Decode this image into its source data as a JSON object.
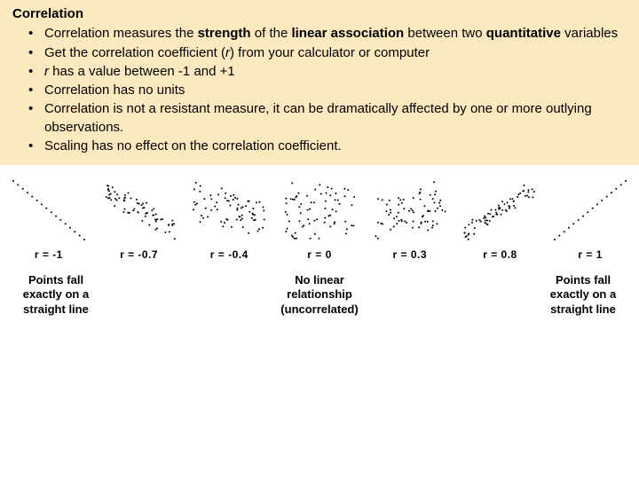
{
  "title": "Correlation",
  "bullets": [
    {
      "html": "Correlation measures the <span class='bold'>strength</span> of the <span class='bold'>linear association</span> between two <span class='bold'>quantitative</span> variables"
    },
    {
      "html": "Get the correlation coefficient (<em class='italic-r'>r</em>) from your calculator or computer"
    },
    {
      "html": "<em class='italic-r'>r</em> has a value between -1 and +1"
    },
    {
      "html": "Correlation has no units"
    },
    {
      "html": "Correlation is not a resistant measure, it can be dramatically affected by one or more outlying observations."
    },
    {
      "html": "Scaling has no effect on the correlation coefficient."
    }
  ],
  "plots": [
    {
      "r": -1.0,
      "label": "r = -1",
      "n": 16,
      "noise": 0
    },
    {
      "r": -0.7,
      "label": "r = -0.7",
      "n": 70,
      "noise": 0.35
    },
    {
      "r": -0.4,
      "label": "r = -0.4",
      "n": 70,
      "noise": 0.55
    },
    {
      "r": 0.0,
      "label": "r = 0",
      "n": 70,
      "noise": 0.9
    },
    {
      "r": 0.3,
      "label": "r = 0.3",
      "n": 70,
      "noise": 0.65
    },
    {
      "r": 0.8,
      "label": "r = 0.8",
      "n": 70,
      "noise": 0.28
    },
    {
      "r": 1.0,
      "label": "r = 1",
      "n": 16,
      "noise": 0
    }
  ],
  "plot_style": {
    "width": 92,
    "height": 78,
    "dot_radius": 1.0,
    "dot_color": "#000000",
    "background": "#ffffff",
    "padding": 6
  },
  "captions": {
    "left": "Points fall\nexactly on a\nstraight line",
    "center": "No linear\nrelationship\n(uncorrelated)",
    "right": "Points fall\nexactly on a\nstraight line"
  },
  "colors": {
    "textbox_bg": "#fce9c0",
    "page_bg": "#ffffff",
    "text": "#000000"
  },
  "fonts": {
    "body_family": "Arial",
    "body_size_pt": 11,
    "plot_label_family": "Comic Sans MS",
    "plot_label_size_pt": 9,
    "caption_size_pt": 10
  }
}
